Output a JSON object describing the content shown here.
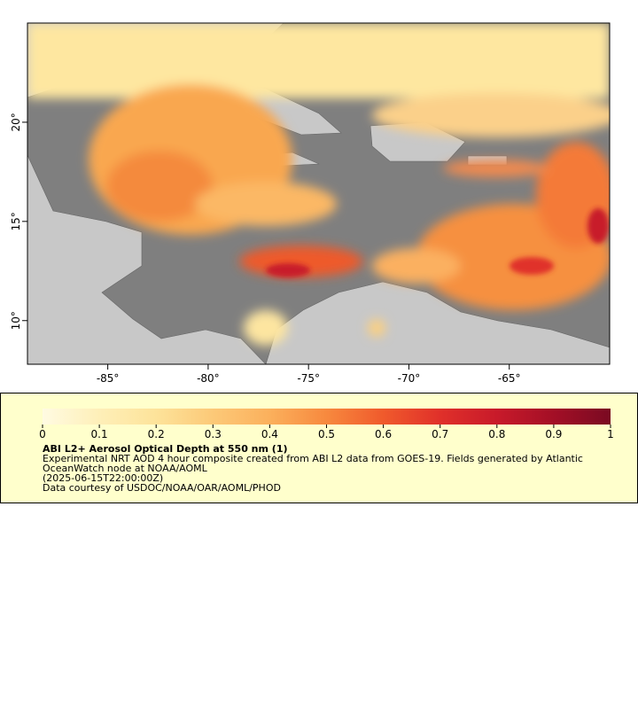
{
  "chart_data": {
    "type": "map",
    "xlim": [
      -89,
      -60
    ],
    "ylim": [
      7.8,
      25
    ],
    "xticks": [
      {
        "value": -85,
        "label": "-85°"
      },
      {
        "value": -80,
        "label": "-80°"
      },
      {
        "value": -75,
        "label": "-75°"
      },
      {
        "value": -70,
        "label": "-70°"
      },
      {
        "value": -65,
        "label": "-65°"
      }
    ],
    "yticks": [
      {
        "value": 10,
        "label": "10°"
      },
      {
        "value": 15,
        "label": "15°"
      },
      {
        "value": 20,
        "label": "20°"
      }
    ],
    "colorbar": {
      "lim": [
        0,
        1
      ],
      "ticks": [
        0,
        0.1,
        0.2,
        0.3,
        0.4,
        0.5,
        0.6,
        0.7,
        0.8,
        0.9,
        1
      ],
      "colors": [
        "#fffbe2",
        "#feefb8",
        "#fde39a",
        "#fcc978",
        "#fbb05c",
        "#f7893e",
        "#f05a2c",
        "#e0302a",
        "#c81a2a",
        "#a30f26",
        "#7a0a22"
      ]
    },
    "title": "ABI L2+ Aerosol Optical Depth at 550 nm (1)",
    "description": "Experimental NRT AOD 4 hour composite created from ABI L2 data from GOES-19. Fields generated by Atlantic OceanWatch node at NOAA/AOML",
    "time": "(2025-06-15T22:00:00Z)",
    "credit": "Data courtesy of USDOC/NOAA/OAR/AOML/PHOD"
  }
}
